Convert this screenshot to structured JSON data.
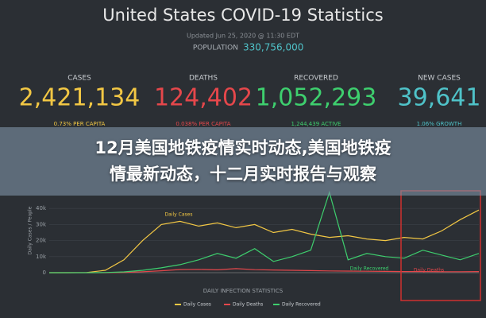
{
  "header": {
    "title": "United States COVID-19 Statistics",
    "updated": "Updated Jun 25, 2020 @ 11:30 EDT",
    "population_label": "POPULATION",
    "population": "330,756,000",
    "population_color": "#4fc3c9"
  },
  "stats": [
    {
      "label": "CASES",
      "value": "2,421,134",
      "sub": "0.73% PER CAPITA",
      "color": "#f2c744"
    },
    {
      "label": "DEATHS",
      "value": "124,402",
      "sub": "0.038% PER CAPITA",
      "color": "#e5474b"
    },
    {
      "label": "RECOVERED",
      "value": "1,052,293",
      "sub": "1,244,439 ACTIVE",
      "color": "#3ecf6e"
    },
    {
      "label": "NEW CASES",
      "value": "39,641",
      "sub": "1.06% GROWTH",
      "color": "#4fc3c9"
    }
  ],
  "overlay": {
    "title": "12月美国地铁疫情实时动态,美国地铁疫情最新动态，十二月实时报告与观察"
  },
  "chart_data": {
    "type": "line",
    "title": "DAILY INFECTION STATISTICS",
    "ylabel": "Daily Cases / People",
    "categories": [
      null,
      null,
      null,
      null,
      null,
      null,
      null,
      null,
      null,
      null,
      null,
      null,
      null,
      null,
      null,
      null,
      null,
      null,
      null,
      null,
      null,
      null,
      null,
      null
    ],
    "series": [
      {
        "name": "Daily Cases",
        "color": "#f2c744",
        "values": [
          0,
          0,
          100,
          1500,
          8000,
          20000,
          30000,
          32000,
          29000,
          31000,
          28000,
          30000,
          25000,
          27000,
          24000,
          22000,
          23000,
          21000,
          20000,
          22000,
          21000,
          26000,
          33000,
          39000
        ]
      },
      {
        "name": "Daily Deaths",
        "color": "#e5474b",
        "values": [
          0,
          0,
          0,
          20,
          200,
          600,
          1200,
          2000,
          2100,
          1800,
          2500,
          1900,
          1700,
          1500,
          1300,
          1100,
          1000,
          900,
          800,
          700,
          700,
          600,
          600,
          700
        ]
      },
      {
        "name": "Daily Recovered",
        "color": "#3ecf6e",
        "values": [
          0,
          0,
          0,
          100,
          500,
          1500,
          3000,
          5000,
          8000,
          12000,
          9000,
          15000,
          7000,
          10000,
          14000,
          50000,
          8000,
          12000,
          10000,
          9000,
          14000,
          11000,
          8000,
          12000
        ]
      }
    ],
    "ylim": [
      0,
      50000
    ],
    "yticks": [
      0,
      {
        "value": 10000,
        "label": "10k"
      },
      {
        "value": 20000,
        "label": "20k"
      },
      {
        "value": 30000,
        "label": "30k"
      },
      {
        "value": 40000,
        "label": "40k"
      }
    ],
    "grid": true
  }
}
